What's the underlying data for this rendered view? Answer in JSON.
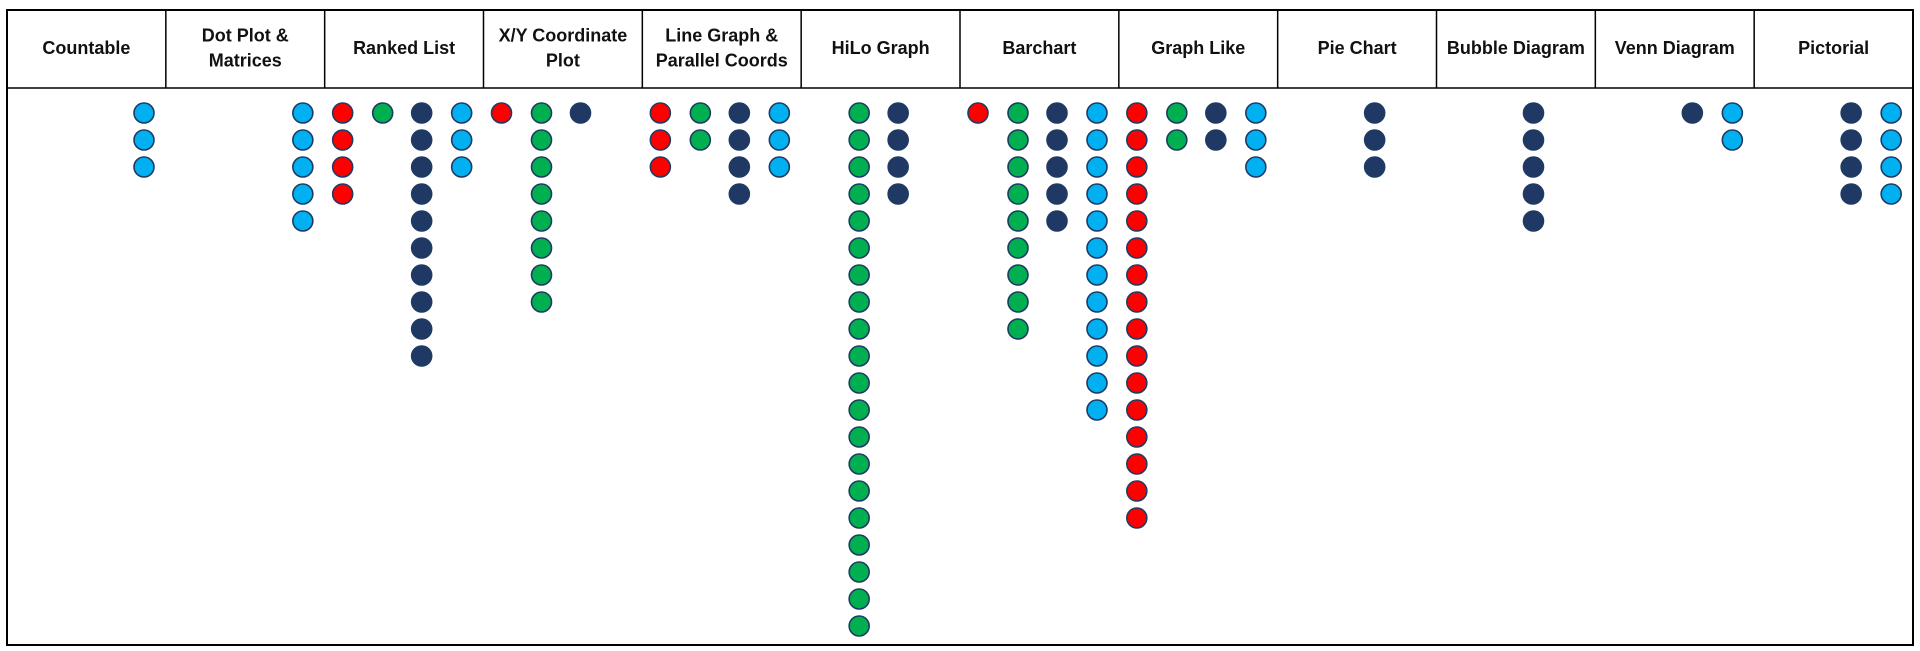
{
  "chart_data": {
    "type": "dot-matrix",
    "title": "",
    "categories": [
      {
        "label": [
          "Countable"
        ],
        "stacks": [
          {
            "color": "light-blue",
            "count": 0
          },
          {
            "color": "light-blue",
            "count": 0
          },
          {
            "color": "light-blue",
            "count": 0
          },
          {
            "color": "light-blue",
            "count": 3
          }
        ]
      },
      {
        "label": [
          "Dot Plot &",
          "Matrices"
        ],
        "stacks": [
          {
            "color": "light-blue",
            "count": 0
          },
          {
            "color": "light-blue",
            "count": 0
          },
          {
            "color": "light-blue",
            "count": 0
          },
          {
            "color": "light-blue",
            "count": 5
          }
        ]
      },
      {
        "label": [
          "Ranked List"
        ],
        "stacks": [
          {
            "color": "red",
            "count": 4
          },
          {
            "color": "green",
            "count": 1
          },
          {
            "color": "navy",
            "count": 10
          },
          {
            "color": "light-blue",
            "count": 3
          }
        ]
      },
      {
        "label": [
          "X/Y Coordinate",
          "Plot"
        ],
        "stacks": [
          {
            "color": "red",
            "count": 1
          },
          {
            "color": "green",
            "count": 8
          },
          {
            "color": "navy",
            "count": 1
          },
          {
            "color": "light-blue",
            "count": 0
          }
        ]
      },
      {
        "label": [
          "Line Graph &",
          "Parallel Coords"
        ],
        "stacks": [
          {
            "color": "red",
            "count": 3
          },
          {
            "color": "green",
            "count": 2
          },
          {
            "color": "navy",
            "count": 4
          },
          {
            "color": "light-blue",
            "count": 3
          }
        ]
      },
      {
        "label": [
          "HiLo Graph"
        ],
        "stacks": [
          {
            "color": "red",
            "count": 0
          },
          {
            "color": "green",
            "count": 20
          },
          {
            "color": "navy",
            "count": 4
          },
          {
            "color": "light-blue",
            "count": 0
          }
        ]
      },
      {
        "label": [
          "Barchart"
        ],
        "stacks": [
          {
            "color": "red",
            "count": 1
          },
          {
            "color": "green",
            "count": 9
          },
          {
            "color": "navy",
            "count": 5
          },
          {
            "color": "light-blue",
            "count": 12
          }
        ]
      },
      {
        "label": [
          "Graph Like"
        ],
        "stacks": [
          {
            "color": "red",
            "count": 16
          },
          {
            "color": "green",
            "count": 2
          },
          {
            "color": "navy",
            "count": 2
          },
          {
            "color": "light-blue",
            "count": 3
          }
        ]
      },
      {
        "label": [
          "Pie Chart"
        ],
        "stacks": [
          {
            "color": "red",
            "count": 0
          },
          {
            "color": "green",
            "count": 0
          },
          {
            "color": "navy",
            "count": 3
          },
          {
            "color": "light-blue",
            "count": 0
          }
        ]
      },
      {
        "label": [
          "Bubble Diagram"
        ],
        "stacks": [
          {
            "color": "red",
            "count": 0
          },
          {
            "color": "green",
            "count": 0
          },
          {
            "color": "navy",
            "count": 5
          },
          {
            "color": "light-blue",
            "count": 0
          }
        ]
      },
      {
        "label": [
          "Venn Diagram"
        ],
        "stacks": [
          {
            "color": "red",
            "count": 0
          },
          {
            "color": "green",
            "count": 0
          },
          {
            "color": "navy",
            "count": 1
          },
          {
            "color": "light-blue",
            "count": 2
          }
        ]
      },
      {
        "label": [
          "Pictorial"
        ],
        "stacks": [
          {
            "color": "red",
            "count": 0
          },
          {
            "color": "green",
            "count": 0
          },
          {
            "color": "navy",
            "count": 4
          },
          {
            "color": "light-blue",
            "count": 4
          }
        ]
      }
    ],
    "legend": null,
    "grid": false
  },
  "colors": {
    "red": "#ff0000",
    "green": "#00b050",
    "navy": "#1f3864",
    "light-blue": "#00b0f0",
    "dot_outline": "#1f3b64",
    "border": "#000000",
    "header_text": "#111111",
    "background": "#ffffff"
  }
}
